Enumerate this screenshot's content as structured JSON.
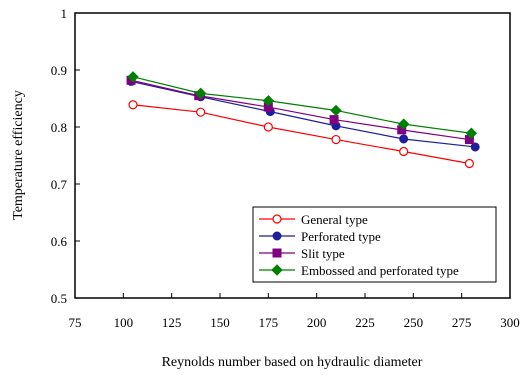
{
  "chart_data": {
    "type": "line",
    "title": "",
    "xlabel": "Reynolds number based on hydraulic diameter",
    "ylabel": "Temperature efficiency",
    "xlim": [
      75,
      300
    ],
    "ylim": [
      0.5,
      1.0
    ],
    "xticks": [
      75,
      100,
      125,
      150,
      175,
      200,
      225,
      250,
      275,
      300
    ],
    "yticks": [
      0.5,
      0.6,
      0.7,
      0.8,
      0.9,
      1.0
    ],
    "xtick_labels": [
      "75",
      "100",
      "125",
      "150",
      "175",
      "200",
      "225",
      "250",
      "275",
      "300"
    ],
    "ytick_labels": [
      "0.5",
      "0.6",
      "0.7",
      "0.8",
      "0.9",
      "1"
    ],
    "grid": false,
    "legend_position": "bottom-right",
    "series": [
      {
        "name": "General type",
        "color": "#ff0000",
        "marker": "circle-open",
        "x": [
          105,
          140,
          175,
          210,
          245,
          279
        ],
        "y": [
          0.839,
          0.826,
          0.8,
          0.778,
          0.757,
          0.736
        ]
      },
      {
        "name": "Perforated type",
        "color": "#1f1f9a",
        "marker": "circle-filled",
        "x": [
          104,
          140,
          176,
          210,
          245,
          282
        ],
        "y": [
          0.88,
          0.853,
          0.827,
          0.802,
          0.779,
          0.765
        ]
      },
      {
        "name": "Slit type",
        "color": "#800080",
        "marker": "square-filled",
        "x": [
          104,
          139,
          175,
          209,
          244,
          279
        ],
        "y": [
          0.882,
          0.855,
          0.835,
          0.813,
          0.795,
          0.778
        ]
      },
      {
        "name": "Embossed and perforated type",
        "color": "#008000",
        "marker": "diamond-filled",
        "x": [
          105,
          140,
          175,
          210,
          245,
          280
        ],
        "y": [
          0.888,
          0.859,
          0.846,
          0.829,
          0.805,
          0.789
        ]
      }
    ]
  }
}
